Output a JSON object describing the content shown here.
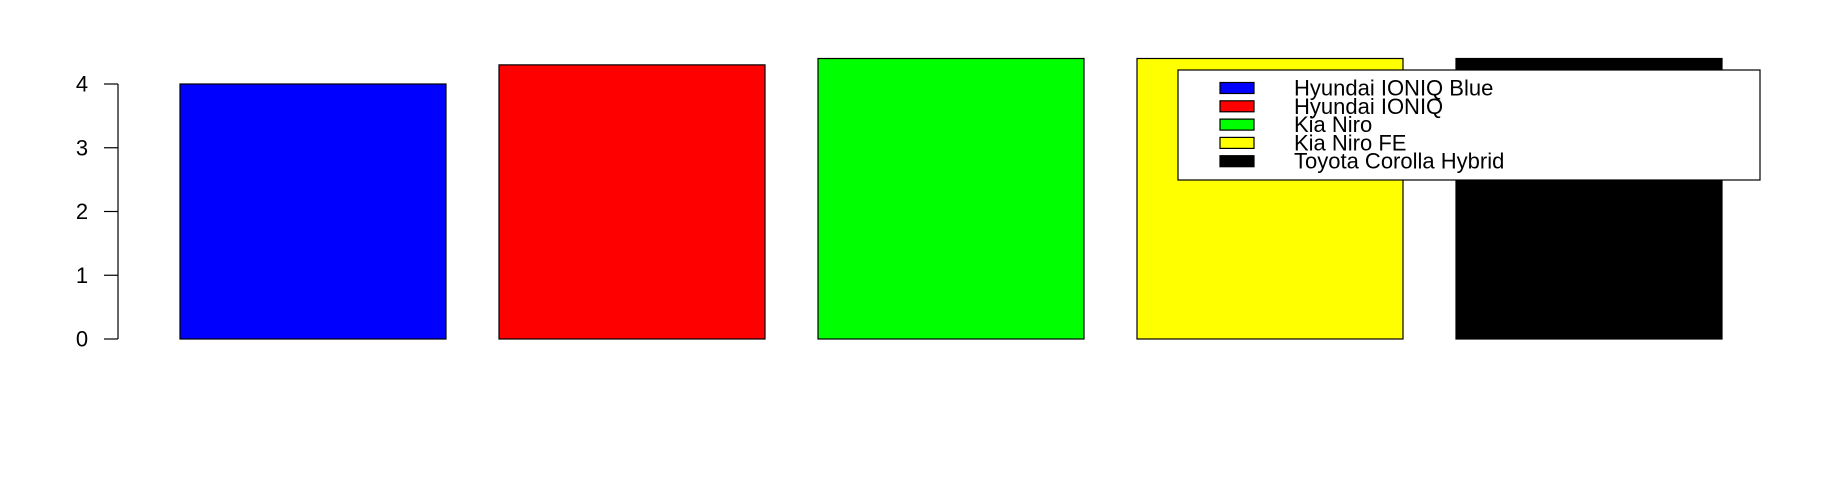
{
  "chart_data": {
    "type": "bar",
    "categories": [
      "Hyundai IONIQ Blue",
      "Hyundai IONIQ",
      "Kia Niro",
      "Kia Niro FE",
      "Toyota Corolla Hybrid"
    ],
    "values": [
      4.0,
      4.3,
      4.4,
      4.4,
      4.4
    ],
    "colors": [
      "#0000ff",
      "#ff0000",
      "#00ff00",
      "#ffff00",
      "#000000"
    ],
    "ylim": [
      0,
      4.4
    ],
    "yticks": [
      "0",
      "1",
      "2",
      "3",
      "4"
    ],
    "grid": false,
    "legend_position": "top-right",
    "legend": [
      {
        "label": "Hyundai IONIQ Blue",
        "color": "#0000ff"
      },
      {
        "label": "Hyundai IONIQ",
        "color": "#ff0000"
      },
      {
        "label": "Kia Niro",
        "color": "#00ff00"
      },
      {
        "label": "Kia Niro FE",
        "color": "#ffff00"
      },
      {
        "label": "Toyota Corolla Hybrid",
        "color": "#000000"
      }
    ]
  }
}
